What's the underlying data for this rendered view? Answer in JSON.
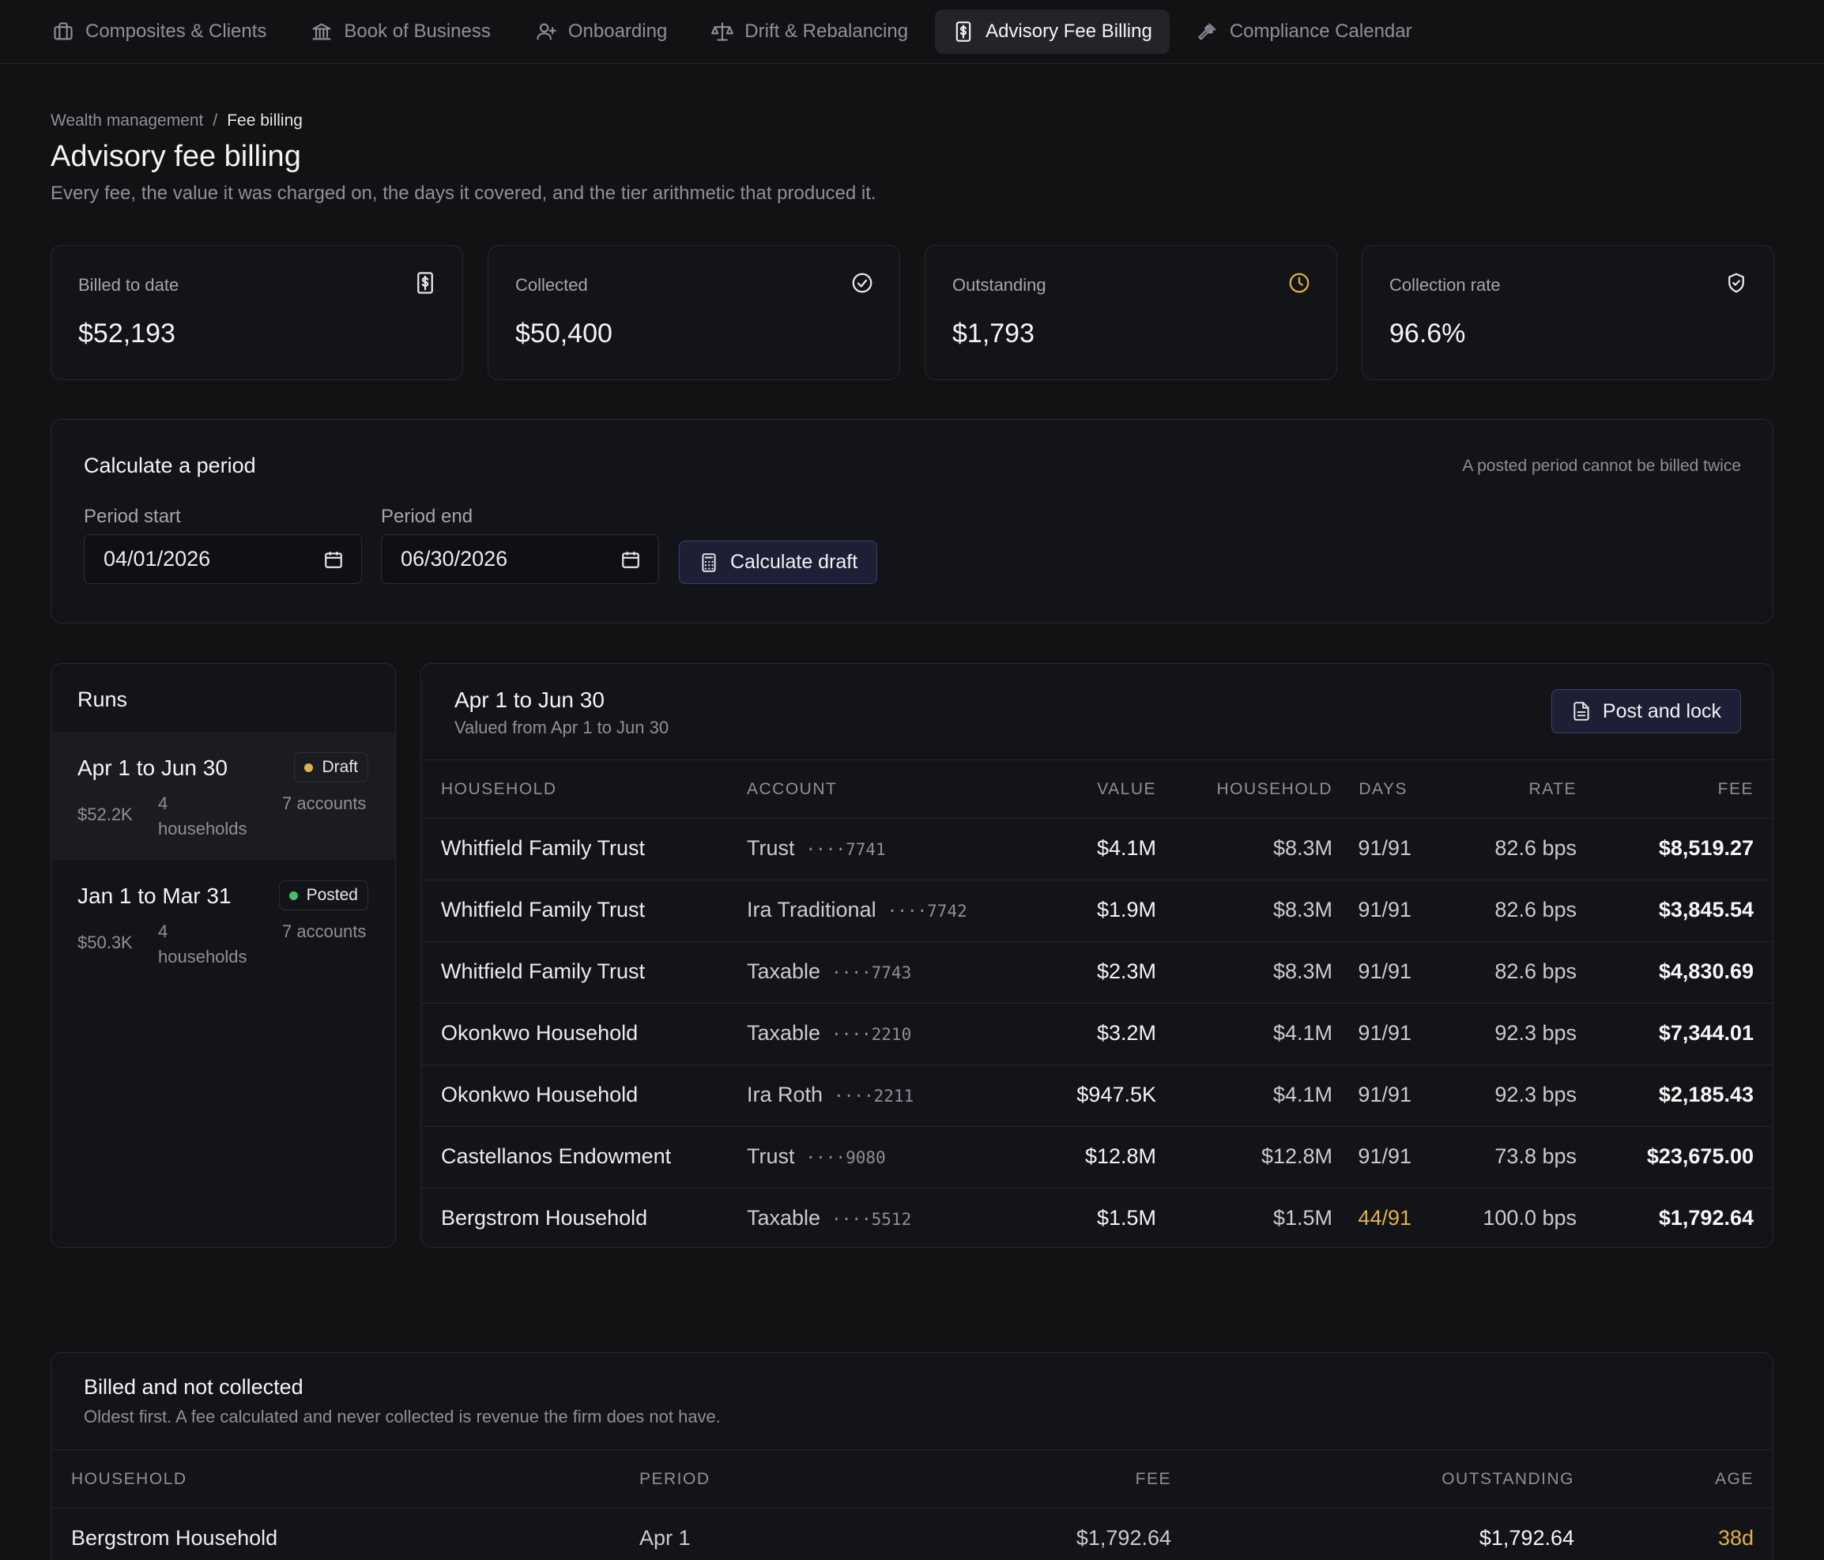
{
  "nav": {
    "tabs": [
      {
        "label": "Composites & Clients",
        "icon": "briefcase-icon"
      },
      {
        "label": "Book of Business",
        "icon": "bank-icon"
      },
      {
        "label": "Onboarding",
        "icon": "user-plus-icon"
      },
      {
        "label": "Drift & Rebalancing",
        "icon": "scale-icon"
      },
      {
        "label": "Advisory Fee Billing",
        "icon": "invoice-icon",
        "active": true
      },
      {
        "label": "Compliance Calendar",
        "icon": "gavel-icon"
      }
    ]
  },
  "breadcrumb": {
    "parent": "Wealth management",
    "separator": "/",
    "current": "Fee billing"
  },
  "page": {
    "title": "Advisory fee billing",
    "subtitle": "Every fee, the value it was charged on, the days it covered, and the tier arithmetic that produced it."
  },
  "stats": [
    {
      "label": "Billed to date",
      "value": "$52,193",
      "icon": "invoice-icon"
    },
    {
      "label": "Collected",
      "value": "$50,400",
      "icon": "check-circle-icon"
    },
    {
      "label": "Outstanding",
      "value": "$1,793",
      "icon": "clock-icon",
      "color": "#e0b145"
    },
    {
      "label": "Collection rate",
      "value": "96.6%",
      "icon": "shield-check-icon"
    }
  ],
  "calculate": {
    "title": "Calculate a period",
    "note": "A posted period cannot be billed twice",
    "period_start_label": "Period start",
    "period_start_value": "04/01/2026",
    "period_end_label": "Period end",
    "period_end_value": "06/30/2026",
    "button_label": "Calculate draft"
  },
  "runs": {
    "title": "Runs",
    "items": [
      {
        "title": "Apr 1 to Jun 30",
        "status": "Draft",
        "status_color": "#e0b145",
        "amount": "$52.2K",
        "households": "4 households",
        "accounts": "7 accounts",
        "selected": true
      },
      {
        "title": "Jan 1 to Mar 31",
        "status": "Posted",
        "status_color": "#3fbf6f",
        "amount": "$50.3K",
        "households": "4 households",
        "accounts": "7 accounts"
      }
    ]
  },
  "detail": {
    "title": "Apr 1 to Jun 30",
    "subtitle": "Valued from Apr 1 to Jun 30",
    "post_button_label": "Post and lock",
    "columns": [
      "HOUSEHOLD",
      "ACCOUNT",
      "VALUE",
      "HOUSEHOLD",
      "DAYS",
      "RATE",
      "FEE"
    ],
    "rows": [
      {
        "household": "Whitfield Family Trust",
        "account": "Trust",
        "mask": "····7741",
        "value": "$4.1M",
        "hh_value": "$8.3M",
        "days": "91/91",
        "rate": "82.6 bps",
        "fee": "$8,519.27"
      },
      {
        "household": "Whitfield Family Trust",
        "account": "Ira Traditional",
        "mask": "····7742",
        "value": "$1.9M",
        "hh_value": "$8.3M",
        "days": "91/91",
        "rate": "82.6 bps",
        "fee": "$3,845.54"
      },
      {
        "household": "Whitfield Family Trust",
        "account": "Taxable",
        "mask": "····7743",
        "value": "$2.3M",
        "hh_value": "$8.3M",
        "days": "91/91",
        "rate": "82.6 bps",
        "fee": "$4,830.69"
      },
      {
        "household": "Okonkwo Household",
        "account": "Taxable",
        "mask": "····2210",
        "value": "$3.2M",
        "hh_value": "$4.1M",
        "days": "91/91",
        "rate": "92.3 bps",
        "fee": "$7,344.01"
      },
      {
        "household": "Okonkwo Household",
        "account": "Ira Roth",
        "mask": "····2211",
        "value": "$947.5K",
        "hh_value": "$4.1M",
        "days": "91/91",
        "rate": "92.3 bps",
        "fee": "$2,185.43"
      },
      {
        "household": "Castellanos Endowment",
        "account": "Trust",
        "mask": "····9080",
        "value": "$12.8M",
        "hh_value": "$12.8M",
        "days": "91/91",
        "rate": "73.8 bps",
        "fee": "$23,675.00"
      },
      {
        "household": "Bergstrom Household",
        "account": "Taxable",
        "mask": "····5512",
        "value": "$1.5M",
        "hh_value": "$1.5M",
        "days": "44/91",
        "days_partial": true,
        "rate": "100.0 bps",
        "fee": "$1,792.64"
      }
    ]
  },
  "uncollected": {
    "title": "Billed and not collected",
    "subtitle": "Oldest first. A fee calculated and never collected is revenue the firm does not have.",
    "columns": [
      "HOUSEHOLD",
      "PERIOD",
      "FEE",
      "OUTSTANDING",
      "AGE"
    ],
    "rows": [
      {
        "household": "Bergstrom Household",
        "period": "Apr 1",
        "fee": "$1,792.64",
        "outstanding": "$1,792.64",
        "age": "38d"
      }
    ]
  }
}
